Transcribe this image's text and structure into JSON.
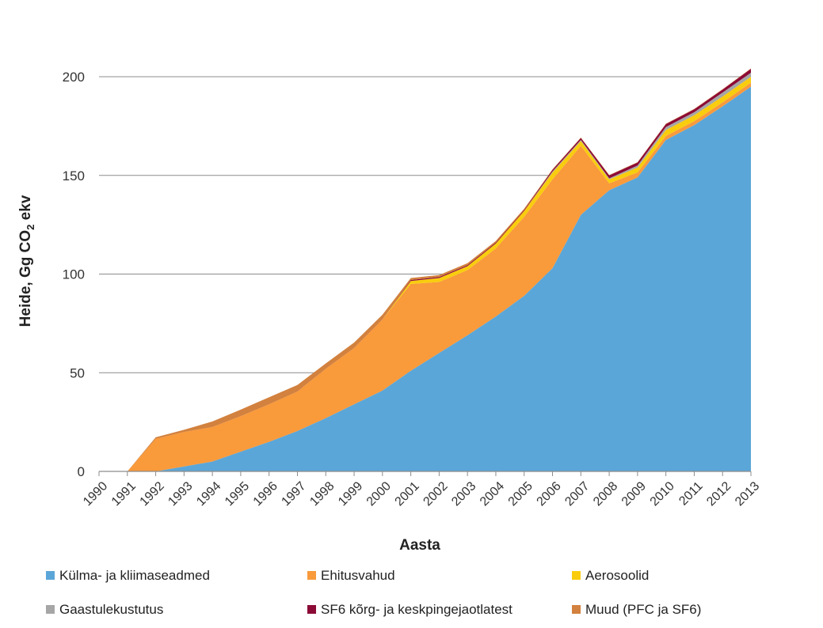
{
  "chart_data": {
    "type": "area",
    "stacked": true,
    "xlabel": "Aasta",
    "ylabel": {
      "main": "Heide, Gg CO",
      "subscript": "2",
      "suffix": " ekv"
    },
    "ylim": [
      0,
      200
    ],
    "yticks": [
      "0",
      "50",
      "100",
      "150",
      "200"
    ],
    "grid": true,
    "legend_position": "bottom",
    "categories": [
      "1990",
      "1991",
      "1992",
      "1993",
      "1994",
      "1995",
      "1996",
      "1997",
      "1998",
      "1999",
      "2000",
      "2001",
      "2002",
      "2003",
      "2004",
      "2005",
      "2006",
      "2007",
      "2008",
      "2009",
      "2010",
      "2011",
      "2012",
      "2013"
    ],
    "series": [
      {
        "name": "Külma- ja kliimaseadmed",
        "color": "#5BA6D8",
        "values": [
          0,
          0,
          0,
          2.5,
          5,
          10,
          15,
          20.5,
          27,
          34,
          41,
          51,
          60,
          69,
          78.5,
          89,
          103,
          130,
          142.5,
          149,
          168,
          175.5,
          185,
          195
        ]
      },
      {
        "name": "Ehitusvahud",
        "color": "#F99A3B",
        "values": [
          0,
          0,
          16.5,
          17.5,
          17.5,
          18,
          19,
          20,
          25,
          28.5,
          36,
          44,
          36,
          33,
          34.5,
          40,
          45,
          35,
          3.5,
          2.5,
          2,
          2,
          2,
          2
        ]
      },
      {
        "name": "Aerosoolid",
        "color": "#F9CD0E",
        "values": [
          0,
          0,
          0,
          0,
          0,
          0,
          0,
          0,
          0,
          0,
          0,
          1.5,
          2,
          2,
          2.5,
          3,
          3.5,
          2.5,
          2,
          2.5,
          3,
          3,
          3,
          3
        ]
      },
      {
        "name": "Gaastulekustutus",
        "color": "#A6A6A6",
        "values": [
          0,
          0,
          0,
          0,
          0,
          0,
          0,
          0,
          0,
          0,
          0,
          0,
          0,
          0,
          0,
          0,
          0.5,
          0.5,
          0.5,
          1,
          1.5,
          1.5,
          2,
          2
        ]
      },
      {
        "name": "SF6 kõrg- ja keskpingejaotlatest",
        "color": "#8B0A36",
        "values": [
          0,
          0,
          0,
          0,
          0,
          0,
          0,
          0,
          0,
          0,
          0,
          0.5,
          0.5,
          0.5,
          0.5,
          0.5,
          0.8,
          1,
          1.5,
          1.5,
          1.5,
          1.5,
          1.5,
          2
        ]
      },
      {
        "name": "Muud (PFC ja SF6)",
        "color": "#D2813E",
        "values": [
          0,
          0,
          0.8,
          1.1,
          2.8,
          3.3,
          3.6,
          3.3,
          2.7,
          2.8,
          2.4,
          1.0,
          1.0,
          1.0,
          0.8,
          0.6,
          0.3,
          0.2,
          0.2,
          0.2,
          0.2,
          0.2,
          0.2,
          0.2
        ]
      }
    ]
  }
}
